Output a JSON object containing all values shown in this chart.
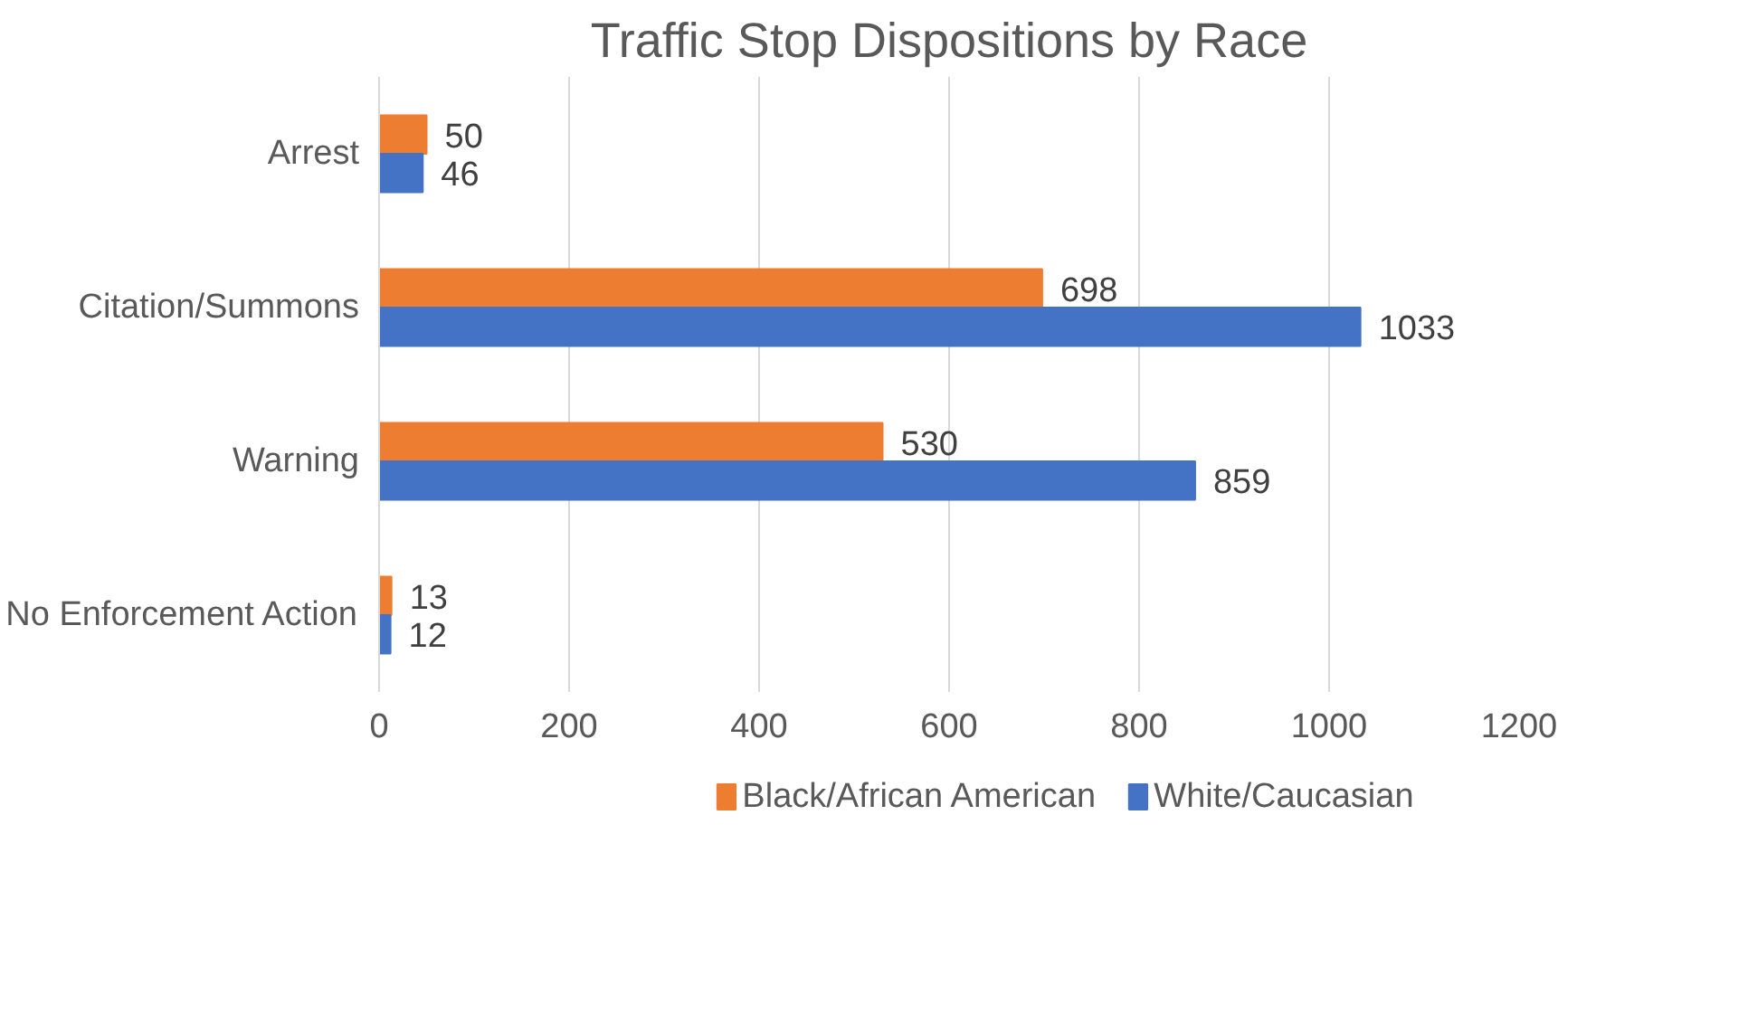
{
  "chart_data": {
    "type": "bar",
    "orientation": "horizontal",
    "title": "Traffic Stop Dispositions by Race",
    "categories": [
      "Arrest",
      "Citation/Summons",
      "Warning",
      "No Enforcement Action"
    ],
    "series": [
      {
        "name": "Black/African American",
        "color": "#ed7d31",
        "values": [
          50,
          698,
          530,
          13
        ]
      },
      {
        "name": "White/Caucasian",
        "color": "#4472c4",
        "values": [
          46,
          1033,
          859,
          12
        ]
      }
    ],
    "xlim": [
      0,
      1200
    ],
    "xticks": [
      0,
      200,
      400,
      600,
      800,
      1000,
      1200
    ],
    "grid": "x",
    "legend": "bottom",
    "data_labels": true
  }
}
